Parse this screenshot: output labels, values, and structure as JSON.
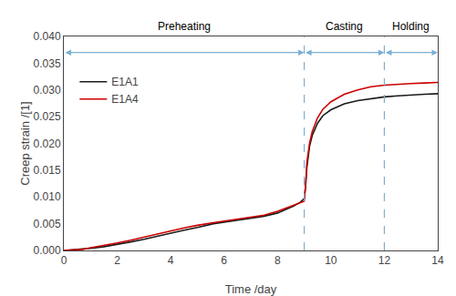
{
  "chart_data": {
    "type": "line",
    "xlabel": "Time /day",
    "ylabel": "Creep strain /[1]",
    "xlim": [
      0,
      14
    ],
    "ylim": [
      0,
      0.04
    ],
    "xticks": [
      0,
      2,
      4,
      6,
      8,
      10,
      12,
      14
    ],
    "yticks": [
      {
        "value": 0.0,
        "label": "0.000"
      },
      0.005,
      {
        "value": 0.01,
        "label": "0.010"
      },
      0.015,
      {
        "value": 0.02,
        "label": "0.020"
      },
      0.025,
      {
        "value": 0.03,
        "label": "0.030"
      },
      0.035,
      {
        "value": 0.04,
        "label": "0.040"
      }
    ],
    "grid": false,
    "legend": "upper left",
    "x": [
      0.0,
      0.3,
      0.7,
      1.0,
      1.5,
      2.0,
      2.5,
      3.0,
      3.5,
      4.0,
      4.5,
      5.0,
      5.3,
      5.6,
      6.0,
      6.5,
      7.0,
      7.5,
      8.0,
      8.3,
      8.6,
      8.85,
      8.9,
      8.95,
      9.0,
      9.05,
      9.1,
      9.2,
      9.3,
      9.5,
      9.7,
      10.0,
      10.5,
      11.0,
      11.5,
      12.0,
      12.5,
      13.0,
      13.5,
      14.0
    ],
    "series": [
      {
        "name": "E1A1",
        "color": "#1a1a1a",
        "values": [
          0.0,
          0.0001,
          0.0002,
          0.0004,
          0.0007,
          0.0011,
          0.0016,
          0.0021,
          0.0027,
          0.0033,
          0.0038,
          0.0043,
          0.0047,
          0.005,
          0.0053,
          0.0057,
          0.0061,
          0.0064,
          0.007,
          0.0076,
          0.0083,
          0.009,
          0.0092,
          0.0094,
          0.0097,
          0.012,
          0.0155,
          0.0195,
          0.0215,
          0.0238,
          0.0252,
          0.0263,
          0.0274,
          0.028,
          0.0284,
          0.0287,
          0.0289,
          0.0291,
          0.0292,
          0.0293
        ]
      },
      {
        "name": "E1A4",
        "color": "#cc0000",
        "values": [
          0.0,
          0.0001,
          0.0002,
          0.0005,
          0.0009,
          0.0014,
          0.0019,
          0.0025,
          0.0031,
          0.0037,
          0.0042,
          0.0047,
          0.005,
          0.0052,
          0.0055,
          0.0059,
          0.0062,
          0.0066,
          0.0073,
          0.0079,
          0.0085,
          0.0089,
          0.009,
          0.0091,
          0.0092,
          0.012,
          0.0165,
          0.02,
          0.0222,
          0.0248,
          0.0264,
          0.0278,
          0.0292,
          0.03,
          0.0306,
          0.0309,
          0.0311,
          0.0312,
          0.0313,
          0.0314
        ]
      }
    ],
    "vlines": [
      {
        "x": 9.0,
        "color": "#7bafd4"
      },
      {
        "x": 12.0,
        "color": "#7bafd4"
      }
    ],
    "annotations": [
      {
        "text": "Preheating",
        "x0": 0,
        "x1": 9.0,
        "arrow_y": 0.037,
        "color": "#7bafd4"
      },
      {
        "text": "Casting",
        "x0": 9.0,
        "x1": 12.0,
        "arrow_y": 0.037,
        "color": "#7bafd4"
      },
      {
        "text": "Holding",
        "x0": 12.0,
        "x1": 14,
        "arrow_y": 0.037,
        "color": "#7bafd4"
      }
    ]
  }
}
